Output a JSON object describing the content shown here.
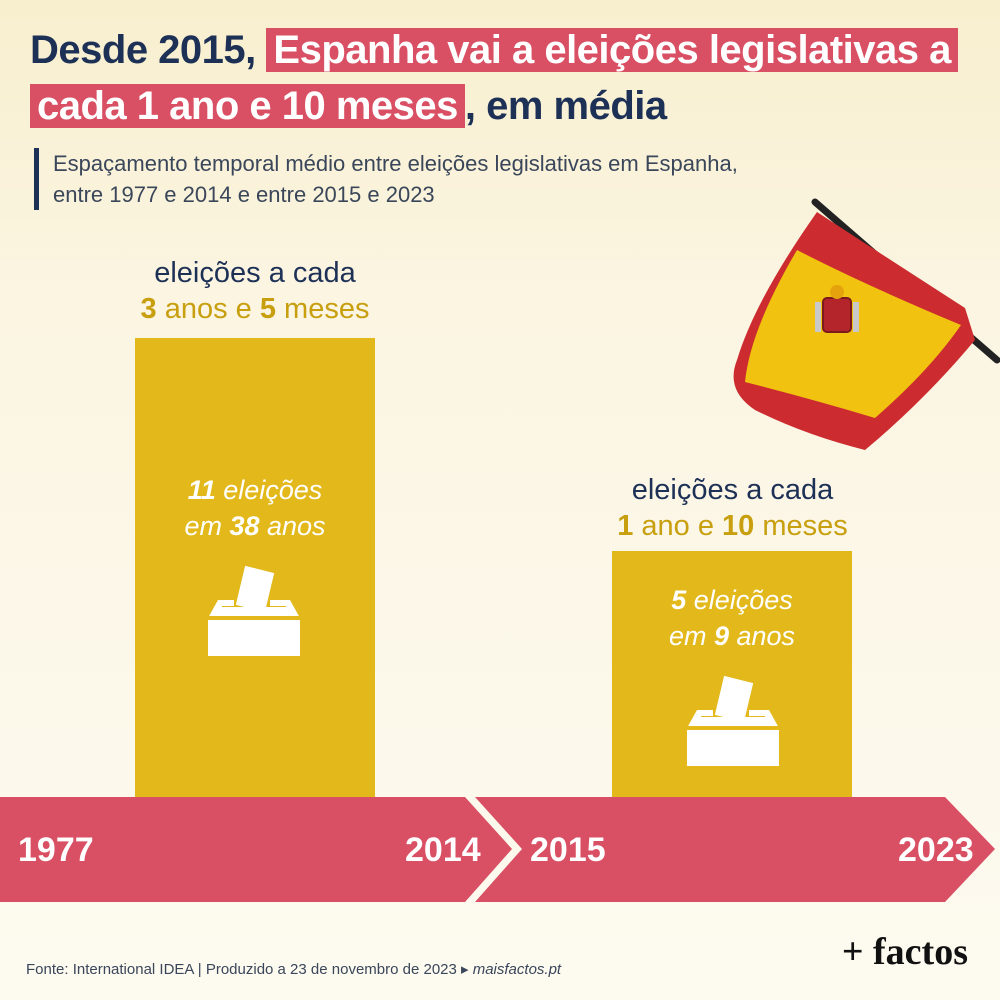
{
  "title": {
    "part1": "Desde 2015,",
    "part2": "Espanha vai a eleições legislativas a cada 1 ano e 10 meses",
    "part3": ", em média"
  },
  "subtitle": {
    "line1": "Espaçamento temporal médio entre eleições legislativas em Espanha,",
    "line2": "entre 1977 e 2014 e entre 2015 e 2023"
  },
  "chart_data": {
    "type": "bar",
    "categories": [
      "1977–2014",
      "2015–2023"
    ],
    "values_months": [
      41,
      22
    ],
    "periods": [
      {
        "start": "1977",
        "end": "2014",
        "elections": 11,
        "years": 38,
        "cap1": "eleições a cada",
        "avg_years": "3",
        "years_word": " anos e ",
        "avg_months": "5",
        "months_word": " meses",
        "elections_word": " eleições",
        "em": "em ",
        "anos": " anos"
      },
      {
        "start": "2015",
        "end": "2023",
        "elections": 5,
        "years": 9,
        "cap1": "eleições a cada",
        "avg_years": "1",
        "years_word": " ano e ",
        "avg_months": "10",
        "months_word": " meses",
        "elections_word": " eleições",
        "em": "em ",
        "anos": " anos"
      }
    ],
    "colors": {
      "bar": "#e2b81a",
      "timeline": "#d94f63",
      "title_text": "#1d3056",
      "accent_text": "#c89f0e"
    }
  },
  "footer": {
    "source": "Fonte: International IDEA | Produzido a 23 de novembro de 2023 ▸",
    "site": "maisfactos.pt"
  },
  "logo": "+ factos",
  "icons": [
    "ballot-box-icon",
    "spain-flag-icon"
  ]
}
